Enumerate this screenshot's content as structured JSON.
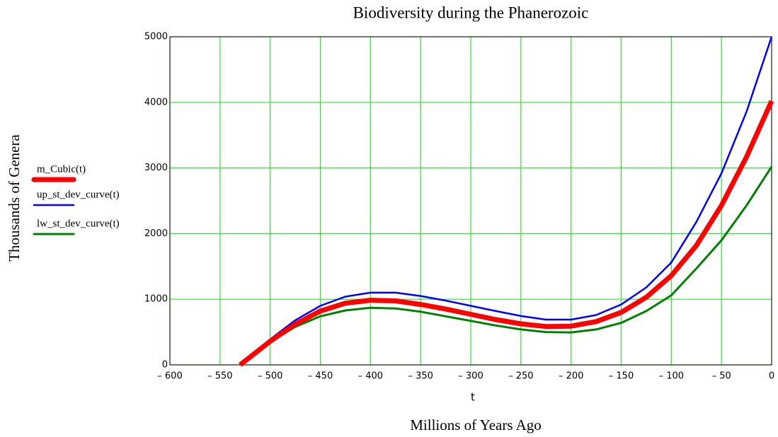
{
  "chart_data": {
    "type": "line",
    "title": "Biodiversity during the Phanerozoic",
    "y_label": "Thousands of Genera",
    "x_label": "t",
    "x_sublabel": "Millions of Years Ago",
    "x": [
      -530,
      -500,
      -475,
      -450,
      -425,
      -400,
      -375,
      -350,
      -325,
      -300,
      -275,
      -250,
      -225,
      -200,
      -175,
      -150,
      -125,
      -100,
      -75,
      -50,
      -25,
      0
    ],
    "series": [
      {
        "name": "m_Cubic(t)",
        "color": "#ff0000",
        "width": 7,
        "values": [
          0,
          360,
          620,
          820,
          940,
          985,
          975,
          920,
          850,
          770,
          690,
          625,
          585,
          590,
          660,
          800,
          1030,
          1360,
          1820,
          2430,
          3170,
          4020
        ]
      },
      {
        "name": "up_st_dev_curve(t)",
        "color": "#0000ff",
        "width": 2.5,
        "values": [
          0,
          390,
          680,
          900,
          1040,
          1100,
          1100,
          1050,
          980,
          900,
          820,
          745,
          690,
          690,
          760,
          920,
          1180,
          1560,
          2180,
          2920,
          3860,
          5000
        ]
      },
      {
        "name": "lw_st_dev_curve(t)",
        "color": "#008000",
        "width": 3,
        "values": [
          0,
          350,
          580,
          740,
          830,
          870,
          860,
          810,
          740,
          670,
          600,
          540,
          500,
          495,
          540,
          640,
          820,
          1060,
          1470,
          1900,
          2430,
          3020
        ]
      }
    ],
    "xlim": [
      -600,
      0
    ],
    "xticks": [
      {
        "value": -600,
        "label": "– 600"
      },
      {
        "value": -550,
        "label": "– 550"
      },
      {
        "value": -500,
        "label": "– 500"
      },
      {
        "value": -450,
        "label": "– 450"
      },
      {
        "value": -400,
        "label": "– 400"
      },
      {
        "value": -350,
        "label": "– 350"
      },
      {
        "value": -300,
        "label": "– 300"
      },
      {
        "value": -250,
        "label": "– 250"
      },
      {
        "value": -200,
        "label": "– 200"
      },
      {
        "value": -150,
        "label": "– 150"
      },
      {
        "value": -100,
        "label": "– 100"
      },
      {
        "value": -50,
        "label": "– 50"
      },
      0
    ],
    "ylim": [
      0,
      5000
    ],
    "yticks": [
      0,
      1000,
      2000,
      3000,
      4000,
      5000
    ],
    "grid": true,
    "grid_color": "#33dd33"
  }
}
